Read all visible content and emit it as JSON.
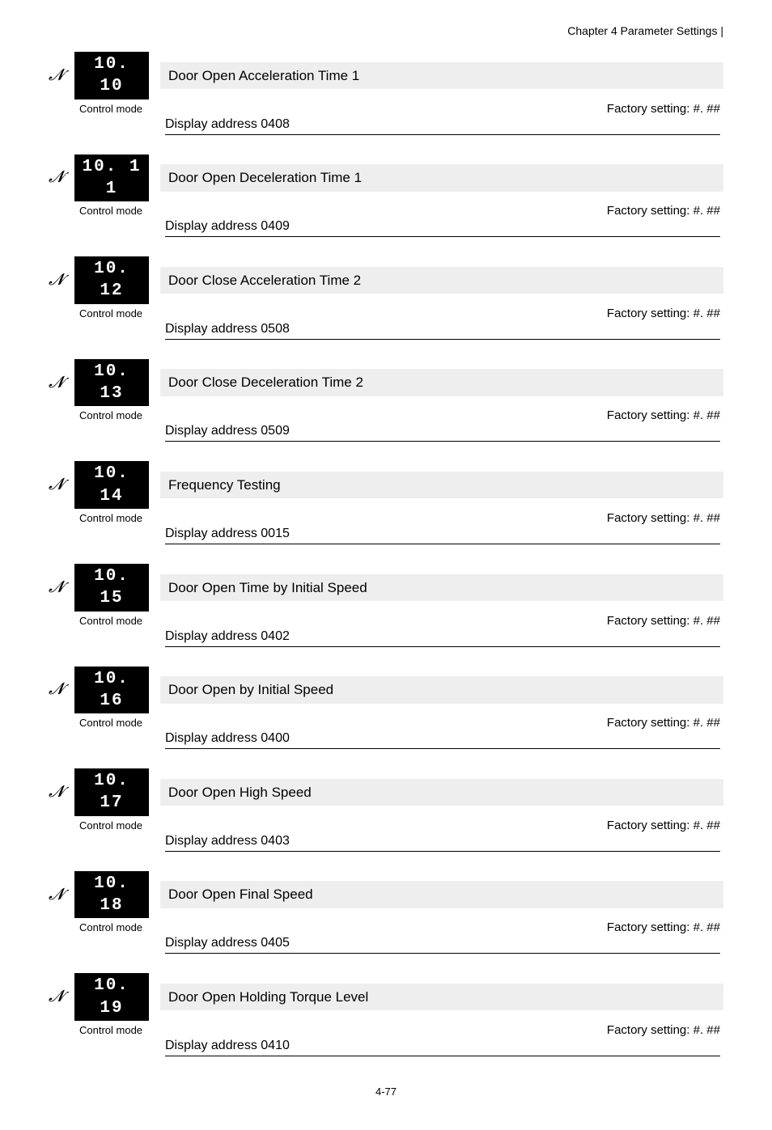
{
  "header": "Chapter 4 Parameter Settings |",
  "labels": {
    "control_mode": "Control mode",
    "factory_setting_prefix": "Factory setting: ",
    "display_addr_prefix": "Display address  "
  },
  "page_number": "4-77",
  "params": [
    {
      "code": "10. 10",
      "title": "Door Open Acceleration Time 1",
      "addr": "0408",
      "factory": "#. ##"
    },
    {
      "code": "10. 1 1",
      "title": "Door Open Deceleration Time 1",
      "addr": "0409",
      "factory": "#. ##"
    },
    {
      "code": "10. 12",
      "title": "Door Close Acceleration Time 2",
      "addr": "0508",
      "factory": "#. ##"
    },
    {
      "code": "10. 13",
      "title": "Door Close Deceleration Time 2",
      "addr": "0509",
      "factory": "#. ##"
    },
    {
      "code": "10. 14",
      "title": "Frequency Testing",
      "addr": "0015",
      "factory": "#. ##"
    },
    {
      "code": "10. 15",
      "title": "Door Open Time by Initial Speed",
      "addr": "0402",
      "factory": "#. ##"
    },
    {
      "code": "10. 16",
      "title": "Door Open by Initial Speed",
      "addr": "0400",
      "factory": "#. ##"
    },
    {
      "code": "10. 17",
      "title": "Door Open High Speed",
      "addr": "0403",
      "factory": "#. ##"
    },
    {
      "code": "10. 18",
      "title": "Door Open Final Speed",
      "addr": "0405",
      "factory": "#. ##"
    },
    {
      "code": "10. 19",
      "title": "Door Open Holding Torque Level",
      "addr": "0410",
      "factory": "#. ##"
    }
  ]
}
